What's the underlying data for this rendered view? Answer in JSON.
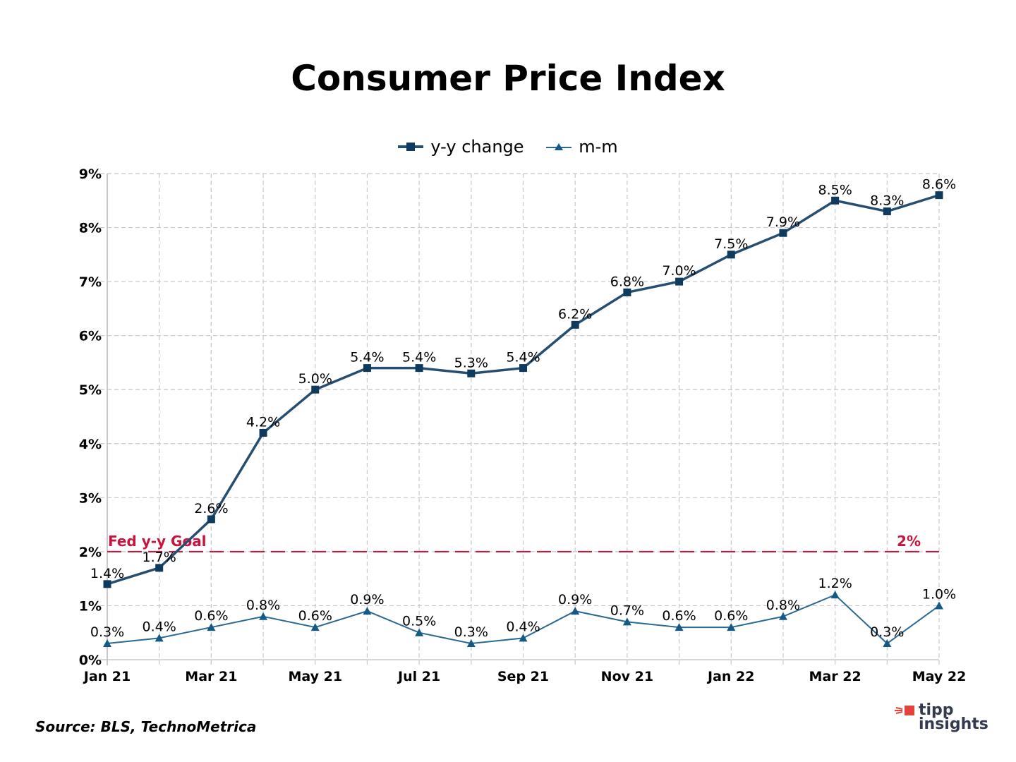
{
  "chart_data": {
    "type": "line",
    "title": "Consumer Price Index",
    "xlabel": "",
    "ylabel": "",
    "ylim": [
      0,
      9
    ],
    "y_ticks": [
      "0%",
      "1%",
      "2%",
      "3%",
      "4%",
      "5%",
      "6%",
      "7%",
      "8%",
      "9%"
    ],
    "y_tick_values": [
      0,
      1,
      2,
      3,
      4,
      5,
      6,
      7,
      8,
      9
    ],
    "grid": true,
    "legend_position": "top-center",
    "categories": [
      "Jan 21",
      "Feb 21",
      "Mar 21",
      "Apr 21",
      "May 21",
      "Jun 21",
      "Jul 21",
      "Aug 21",
      "Sep 21",
      "Oct 21",
      "Nov 21",
      "Dec 21",
      "Jan 22",
      "Feb 22",
      "Mar 22",
      "Apr 22",
      "May 22"
    ],
    "x_tick_labels": [
      "Jan 21",
      "",
      "Mar 21",
      "",
      "May 21",
      "",
      "Jul 21",
      "",
      "Sep 21",
      "",
      "Nov 21",
      "",
      "Jan 22",
      "",
      "Mar 22",
      "",
      "May 22"
    ],
    "series": [
      {
        "name": "y-y change",
        "color": "#254e70",
        "marker": "square",
        "marker_color": "#0f3a5e",
        "values": [
          1.4,
          1.7,
          2.6,
          4.2,
          5.0,
          5.4,
          5.4,
          5.3,
          5.4,
          6.2,
          6.8,
          7.0,
          7.5,
          7.9,
          8.5,
          8.3,
          8.6
        ],
        "labels": [
          "1.4%",
          "1.7%",
          "2.6%",
          "4.2%",
          "5.0%",
          "5.4%",
          "5.4%",
          "5.3%",
          "5.4%",
          "6.2%",
          "6.8%",
          "7.0%",
          "7.5%",
          "7.9%",
          "8.5%",
          "8.3%",
          "8.6%"
        ]
      },
      {
        "name": "m-m",
        "color": "#2a6a92",
        "marker": "triangle",
        "marker_color": "#155a85",
        "values": [
          0.3,
          0.4,
          0.6,
          0.8,
          0.6,
          0.9,
          0.5,
          0.3,
          0.4,
          0.9,
          0.7,
          0.6,
          0.6,
          0.8,
          1.2,
          0.3,
          1.0
        ],
        "labels": [
          "0.3%",
          "0.4%",
          "0.6%",
          "0.8%",
          "0.6%",
          "0.9%",
          "0.5%",
          "0.3%",
          "0.4%",
          "0.9%",
          "0.7%",
          "0.6%",
          "0.6%",
          "0.8%",
          "1.2%",
          "0.3%",
          "1.0%"
        ]
      }
    ],
    "reference_line": {
      "value": 2,
      "label_left": "Fed y-y Goal",
      "label_right": "2%",
      "color": "#c8143c",
      "style": "dashed"
    }
  },
  "source": "Source: BLS, TechnoMetrica",
  "logo": {
    "line1": "tipp",
    "line2": "insights",
    "accent": "#e2443a",
    "text_color": "#333a4d"
  }
}
